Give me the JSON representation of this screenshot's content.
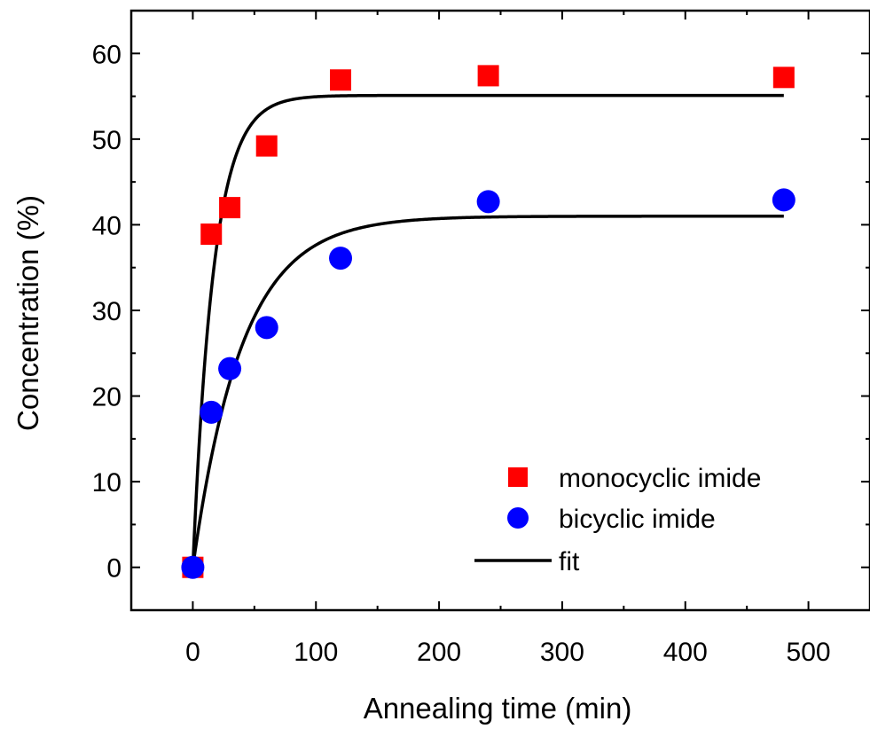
{
  "chart_data": {
    "type": "scatter",
    "xlabel": "Annealing time (min)",
    "ylabel": "Concentration (%)",
    "xlim": [
      -50,
      550
    ],
    "ylim": [
      -5,
      65
    ],
    "xticks": [
      0,
      100,
      200,
      300,
      400,
      500
    ],
    "yticks": [
      0,
      10,
      20,
      30,
      40,
      50,
      60
    ],
    "grid": false,
    "legend_position": "bottom-right",
    "series": [
      {
        "name": "monocyclic imide",
        "marker": "square",
        "color": "#ff0000",
        "x": [
          0,
          15,
          30,
          60,
          120,
          240,
          480
        ],
        "y": [
          0,
          38.9,
          42.0,
          49.2,
          56.9,
          57.4,
          57.2
        ]
      },
      {
        "name": "bicyclic imide",
        "marker": "circle",
        "color": "#0000ff",
        "x": [
          0,
          15,
          30,
          60,
          120,
          240,
          480
        ],
        "y": [
          0,
          18.1,
          23.2,
          28.0,
          36.1,
          42.7,
          42.9
        ]
      }
    ],
    "fits": [
      {
        "for": "monocyclic imide",
        "amplitude": 55.1,
        "tau": 17
      },
      {
        "for": "bicyclic imide",
        "amplitude": 41.0,
        "tau": 40
      }
    ],
    "fit_legend_label": "fit",
    "fit_color": "#000000"
  }
}
